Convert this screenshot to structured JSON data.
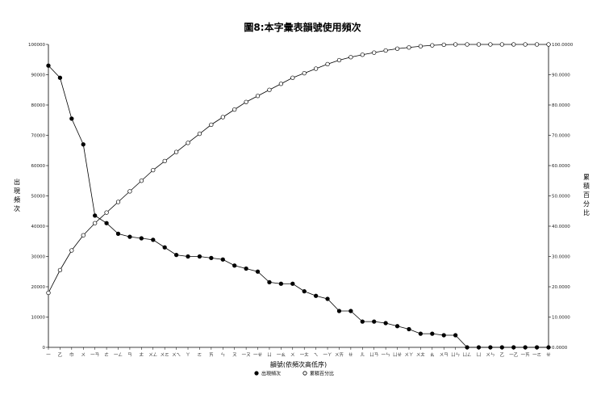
{
  "chart_data": {
    "type": "line",
    "title": "圖8:本字彙表韻號使用頻次",
    "xlabel": "韻號(依頻次高低序)",
    "ylabel_left": "出現頻次",
    "ylabel_right": "累積百分比",
    "y_left_ticks": [
      "0",
      "10000",
      "20000",
      "30000",
      "40000",
      "50000",
      "60000",
      "70000",
      "80000",
      "90000",
      "100000"
    ],
    "y_right_ticks": [
      "0.0000",
      "10.0000",
      "20.0000",
      "30.0000",
      "40.0000",
      "50.0000",
      "60.0000",
      "70.0000",
      "80.0000",
      "90.0000",
      "100.0000"
    ],
    "ylim_left": [
      0,
      100000
    ],
    "ylim_right": [
      0,
      100
    ],
    "categories": [
      "一",
      "乙",
      "巾",
      "ㄨ",
      "一ㄢ",
      "ㄜ",
      "一ㄥ",
      "ㄢ",
      "ㄤ",
      "ㄨㄥ",
      "ㄨㄛ",
      "ㄨㄟ",
      "ㄚ",
      "ㄛ",
      "ㄞ",
      "ㄣ",
      "ㄡ",
      "一ㄡ",
      "一ㄝ",
      "ㄩ",
      "一ㄠ",
      "ㄨ",
      "一ㄤ",
      "ㄟ",
      "一ㄚ",
      "ㄨㄞ",
      "ㄝ",
      "ㄦ",
      "ㄩㄢ",
      "一ㄣ",
      "ㄩㄝ",
      "ㄨㄚ",
      "ㄨㄤ",
      "ㄠ",
      "ㄨㄢ",
      "ㄩㄣ",
      "ㄩㄥ",
      "ㄩ",
      "ㄨㄣ",
      "乙",
      "一乙",
      "一ㄞ",
      "一ㄛ",
      "ㄝ"
    ],
    "legend_position": "bottom",
    "grid": false,
    "series": [
      {
        "name": "出現頻次",
        "marker": "filled-circle",
        "axis": "left",
        "values": [
          93000,
          89000,
          75500,
          67000,
          43500,
          41000,
          37500,
          36500,
          36000,
          35500,
          33000,
          30500,
          30000,
          30000,
          29500,
          29000,
          27000,
          26000,
          25000,
          21500,
          21000,
          21000,
          18500,
          17000,
          16000,
          12000,
          12000,
          8500,
          8500,
          8000,
          7000,
          6000,
          4500,
          4500,
          4000,
          4000,
          0,
          0,
          0,
          0,
          0,
          0,
          0,
          0
        ]
      },
      {
        "name": "累積百分比",
        "marker": "open-circle",
        "axis": "right",
        "values": [
          18,
          25.5,
          32,
          37,
          41,
          44.5,
          48,
          51.5,
          55,
          58.5,
          61.5,
          64.5,
          67.5,
          70.5,
          73.5,
          76,
          78.5,
          81,
          83,
          85,
          87,
          89,
          90.5,
          92,
          93.5,
          94.8,
          95.8,
          96.6,
          97.3,
          98,
          98.6,
          99,
          99.4,
          99.7,
          99.9,
          100,
          100,
          100,
          100,
          100,
          100,
          100,
          100,
          100
        ]
      }
    ]
  }
}
